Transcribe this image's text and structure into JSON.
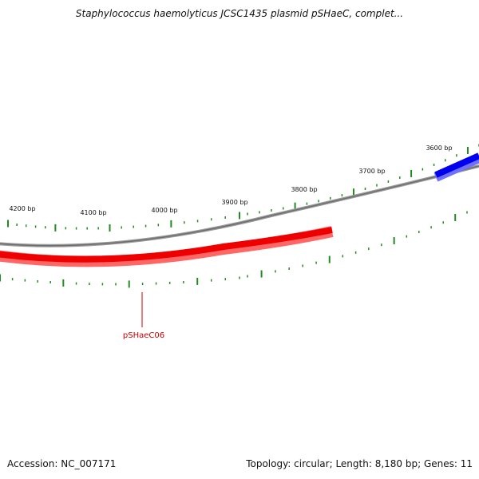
{
  "title": "Staphylococcus haemolyticus JCSC1435 plasmid pSHaeC, complet...",
  "footer": {
    "accession": "Accession: NC_007171",
    "summary": "Topology: circular; Length: 8,180 bp; Genes: 11"
  },
  "ticks": [
    {
      "label": "4200 bp"
    },
    {
      "label": "4100 bp"
    },
    {
      "label": "4000 bp"
    },
    {
      "label": "3900 bp"
    },
    {
      "label": "3800 bp"
    },
    {
      "label": "3700 bp"
    },
    {
      "label": "3600 bp"
    }
  ],
  "genes": [
    {
      "label": "pSHaeC06",
      "color": "#ff0000",
      "strand": "reverse"
    },
    {
      "color": "#0000ff",
      "strand": "forward"
    }
  ],
  "colors": {
    "backbone": "#808080",
    "ticks": "#228b22",
    "gene_label": "#cc0000"
  }
}
